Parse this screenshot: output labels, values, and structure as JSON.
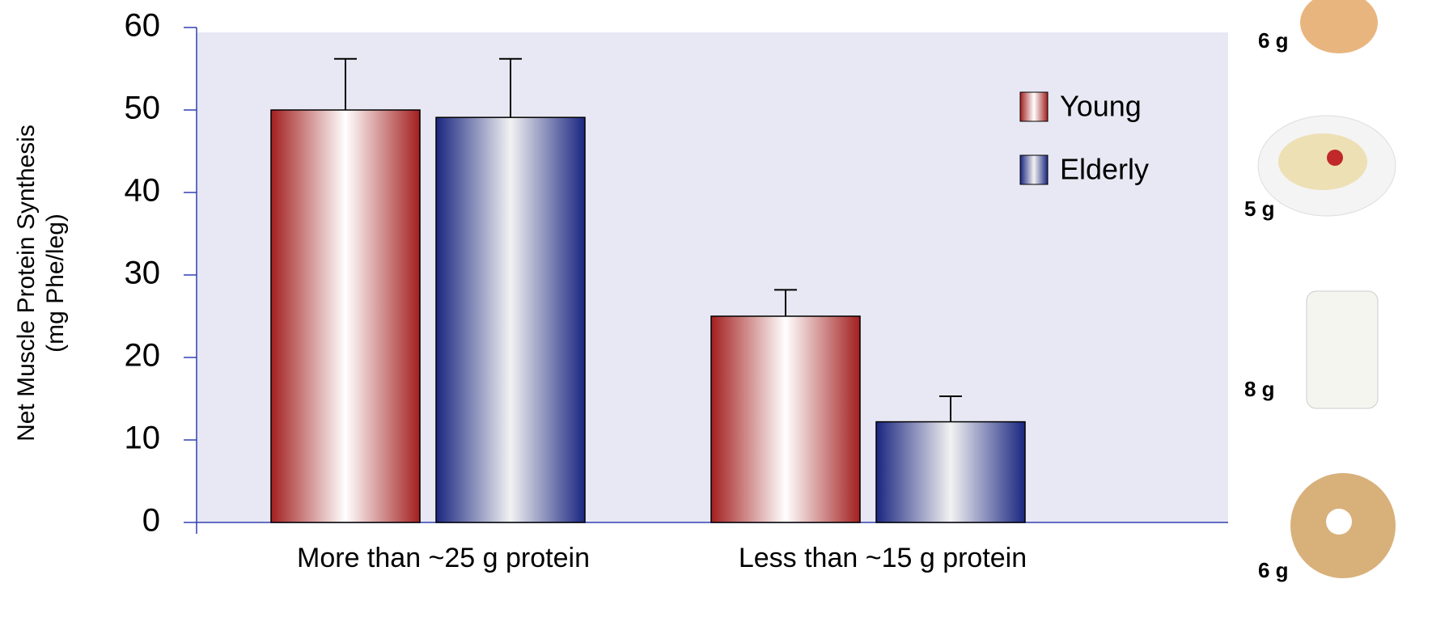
{
  "chart_data": {
    "type": "bar",
    "ylabel": [
      "Net Muscle Protein Synthesis",
      "(mg Phe/leg)"
    ],
    "categories": [
      "More than ~25 g protein",
      "Less than ~15 g protein"
    ],
    "series": [
      {
        "name": "Young",
        "color": "#a31f1f",
        "values": [
          50,
          25
        ],
        "errors": [
          6.2,
          3.2
        ]
      },
      {
        "name": "Elderly",
        "color": "#1a2680",
        "values": [
          49.1,
          12.2
        ],
        "errors": [
          7.1,
          3.1
        ]
      }
    ],
    "ylim": [
      0,
      60
    ],
    "yticks": [
      0,
      10,
      20,
      30,
      40,
      50,
      60
    ],
    "legend": "upper right",
    "foods": [
      "6 g",
      "5 g",
      "8 g",
      "6 g"
    ]
  }
}
